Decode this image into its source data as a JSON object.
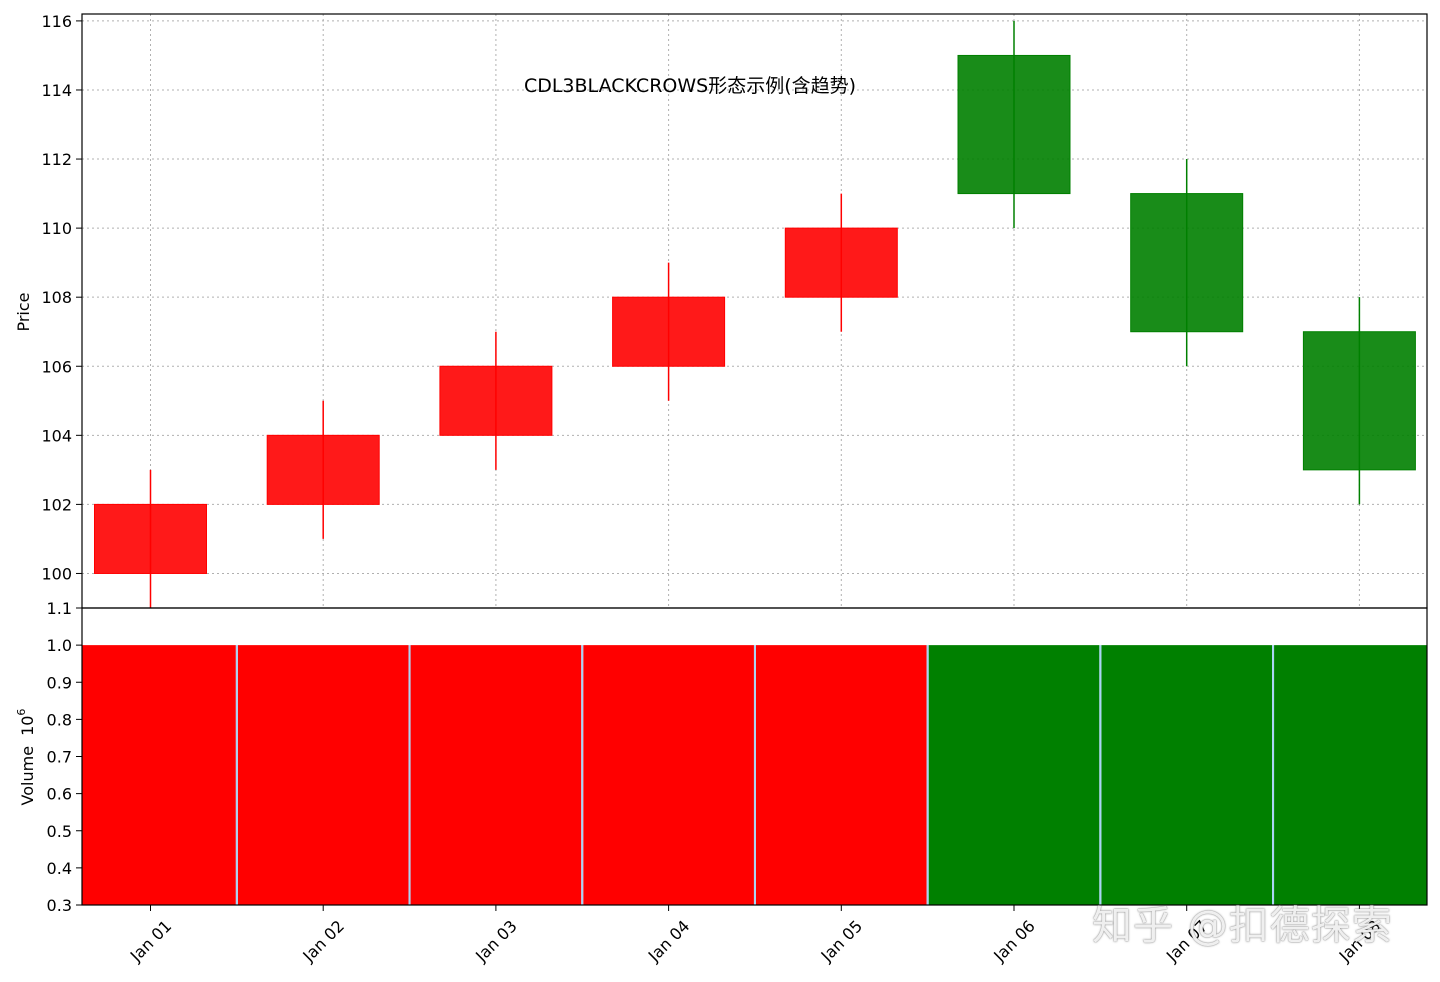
{
  "chart_data": {
    "type": "candlestick",
    "title": "CDL3BLACKCROWS形态示例(含趋势)",
    "categories": [
      "Jan 01",
      "Jan 02",
      "Jan 03",
      "Jan 04",
      "Jan 05",
      "Jan 06",
      "Jan 07",
      "Jan 08"
    ],
    "ohlc": [
      {
        "open": 100,
        "high": 103,
        "low": 99,
        "close": 102
      },
      {
        "open": 102,
        "high": 105,
        "low": 101,
        "close": 104
      },
      {
        "open": 104,
        "high": 107,
        "low": 103,
        "close": 106
      },
      {
        "open": 106,
        "high": 109,
        "low": 105,
        "close": 108
      },
      {
        "open": 108,
        "high": 111,
        "low": 107,
        "close": 110
      },
      {
        "open": 115,
        "high": 116,
        "low": 110,
        "close": 111
      },
      {
        "open": 111,
        "high": 112,
        "low": 106,
        "close": 107
      },
      {
        "open": 107,
        "high": 108,
        "low": 102,
        "close": 103
      }
    ],
    "volume": [
      1.0,
      1.0,
      1.0,
      1.0,
      1.0,
      1.0,
      1.0,
      1.0
    ],
    "price_axis": {
      "label": "Price",
      "ticks": [
        100,
        102,
        104,
        106,
        108,
        110,
        112,
        114,
        116
      ],
      "ylim": [
        99,
        116.2
      ]
    },
    "volume_axis": {
      "label": "Volume",
      "exponent_label": "10",
      "exponent": "6",
      "ticks": [
        "0.3",
        "0.4",
        "0.5",
        "0.6",
        "0.7",
        "0.8",
        "0.9",
        "1.0",
        "1.1"
      ],
      "ylim": [
        0.3,
        1.1
      ]
    },
    "grid": true,
    "colors": {
      "up": "#ff0000",
      "down": "#008000",
      "gap": "#a9d4f5"
    }
  },
  "watermark": "知乎 @扣德探索"
}
